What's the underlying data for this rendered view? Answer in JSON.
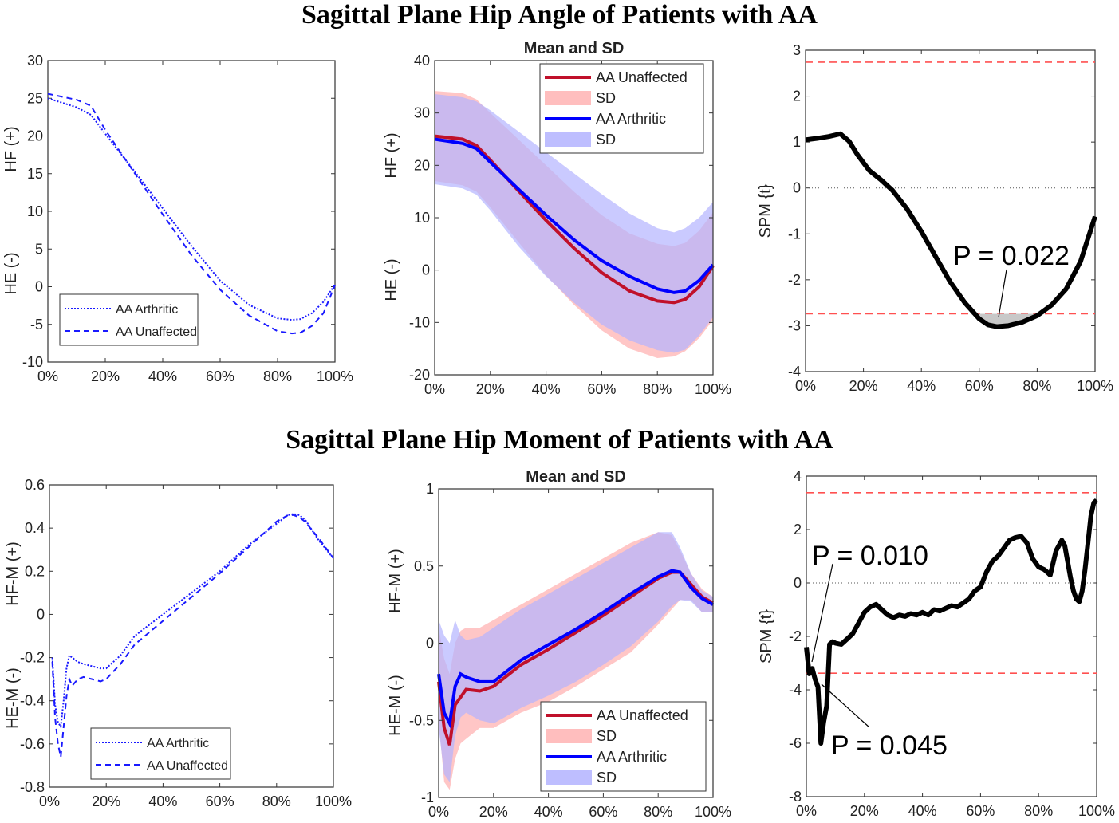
{
  "titles": {
    "top": "Sagittal Plane Hip Angle of Patients with AA",
    "bottom": "Sagittal Plane Hip Moment of Patients with AA"
  },
  "colors": {
    "arthritic": "#1a1aff",
    "unaffected_mean": "#c0102a",
    "arthritic_mean": "#0000ff",
    "unaffected_sd": "#ffb3b3",
    "arthritic_sd": "#b3b3ff",
    "overlap": "#b48ac9",
    "threshold": "#ff5050",
    "spm": "#000000"
  },
  "chart_data": [
    {
      "id": "angle_individual",
      "type": "line",
      "title": "",
      "ylabel_lines": [
        "HE (-)",
        "HF (+)"
      ],
      "xticks": [
        "0%",
        "20%",
        "40%",
        "60%",
        "80%",
        "100%"
      ],
      "yticks": [
        -10,
        -5,
        0,
        5,
        10,
        15,
        20,
        25,
        30
      ],
      "xlim": [
        0,
        100
      ],
      "ylim": [
        -10,
        30
      ],
      "legend": [
        "AA Arthritic",
        "AA Unaffected"
      ],
      "x": [
        0,
        5,
        10,
        15,
        20,
        30,
        40,
        50,
        60,
        70,
        80,
        85,
        88,
        92,
        96,
        100
      ],
      "series": [
        {
          "name": "AA Arthritic",
          "style": "dotted",
          "values": [
            25,
            24.4,
            23.8,
            22.8,
            20.3,
            15.4,
            10.4,
            5.4,
            0.8,
            -2.4,
            -4.2,
            -4.4,
            -4.3,
            -3.5,
            -2.0,
            0.3
          ]
        },
        {
          "name": "AA Unaffected",
          "style": "dashed",
          "values": [
            25.6,
            25.2,
            24.8,
            24.0,
            20.8,
            15.2,
            9.6,
            4.2,
            -0.4,
            -3.8,
            -5.9,
            -6.2,
            -6.1,
            -5.2,
            -3.5,
            0.2
          ]
        }
      ]
    },
    {
      "id": "angle_mean_sd",
      "type": "area",
      "title": "Mean and SD",
      "ylabel_lines": [
        "HE (-)",
        "HF (+)"
      ],
      "xticks": [
        "0%",
        "20%",
        "40%",
        "60%",
        "80%",
        "100%"
      ],
      "yticks": [
        -20,
        -10,
        0,
        10,
        20,
        30,
        40
      ],
      "xlim": [
        0,
        100
      ],
      "ylim": [
        -20,
        40
      ],
      "legend": [
        "AA Unaffected",
        "SD",
        "AA Arthritic",
        "SD"
      ],
      "x": [
        0,
        10,
        15,
        20,
        30,
        40,
        50,
        60,
        70,
        80,
        86,
        90,
        95,
        100
      ],
      "series": [
        {
          "name": "AA Unaffected",
          "values": [
            25.6,
            25.0,
            23.8,
            21.0,
            15.2,
            9.5,
            4.2,
            -0.5,
            -4.0,
            -5.9,
            -6.2,
            -5.6,
            -3.2,
            0.8
          ],
          "sd_upper": [
            34.2,
            33.8,
            32.6,
            30.0,
            25.0,
            20.0,
            15.0,
            10.5,
            7.0,
            5.0,
            4.6,
            5.2,
            7.5,
            11.0
          ],
          "sd_lower": [
            17.0,
            16.2,
            15.0,
            12.0,
            5.4,
            -1.0,
            -6.6,
            -11.5,
            -15.0,
            -16.8,
            -16.5,
            -15.5,
            -13.0,
            -9.5
          ]
        },
        {
          "name": "AA Arthritic",
          "values": [
            25.0,
            24.2,
            23.2,
            20.6,
            15.5,
            10.5,
            5.8,
            1.8,
            -1.2,
            -3.6,
            -4.3,
            -4.0,
            -2.0,
            1.0
          ],
          "sd_upper": [
            33.6,
            33.0,
            32.2,
            30.5,
            26.5,
            22.5,
            18.5,
            14.5,
            10.8,
            8.0,
            7.2,
            8.0,
            10.0,
            13.0
          ],
          "sd_lower": [
            16.4,
            15.6,
            14.4,
            11.4,
            4.6,
            -1.2,
            -6.2,
            -10.4,
            -13.4,
            -15.3,
            -15.8,
            -15.2,
            -12.5,
            -9.0
          ]
        }
      ]
    },
    {
      "id": "angle_spm",
      "type": "line",
      "title": "",
      "ylabel": "SPM {t}",
      "xticks": [
        "0%",
        "20%",
        "40%",
        "60%",
        "80%",
        "100%"
      ],
      "yticks": [
        -4,
        -3,
        -2,
        -1,
        0,
        1,
        2,
        3
      ],
      "xlim": [
        0,
        100
      ],
      "ylim": [
        -4,
        3
      ],
      "threshold": 2.74,
      "annotation": "P = 0.022",
      "x": [
        0,
        4,
        8,
        12,
        15,
        18,
        22,
        26,
        30,
        35,
        40,
        45,
        50,
        55,
        60,
        63,
        66,
        70,
        75,
        80,
        85,
        90,
        95,
        100
      ],
      "values": [
        1.05,
        1.08,
        1.12,
        1.18,
        1.02,
        0.72,
        0.38,
        0.18,
        -0.05,
        -0.45,
        -0.95,
        -1.5,
        -2.05,
        -2.5,
        -2.85,
        -2.98,
        -3.02,
        -3.0,
        -2.92,
        -2.78,
        -2.55,
        -2.2,
        -1.6,
        -0.62
      ]
    },
    {
      "id": "moment_individual",
      "type": "line",
      "title": "",
      "ylabel_lines": [
        "HE-M (-)",
        "HF-M (+)"
      ],
      "xticks": [
        "0%",
        "20%",
        "40%",
        "60%",
        "80%",
        "100%"
      ],
      "yticks": [
        -0.8,
        -0.6,
        -0.4,
        -0.2,
        0,
        0.2,
        0.4,
        0.6
      ],
      "xlim": [
        0,
        100
      ],
      "ylim": [
        -0.8,
        0.6
      ],
      "legend": [
        "AA Arthritic",
        "AA Unaffected"
      ],
      "x": [
        1,
        2,
        3,
        4,
        5,
        6,
        7,
        8,
        10,
        12,
        15,
        18,
        20,
        25,
        30,
        40,
        50,
        60,
        70,
        80,
        84,
        86,
        88,
        90,
        95,
        100
      ],
      "series": [
        {
          "name": "AA Arthritic",
          "style": "dotted",
          "values": [
            -0.2,
            -0.42,
            -0.5,
            -0.52,
            -0.4,
            -0.25,
            -0.19,
            -0.2,
            -0.22,
            -0.23,
            -0.24,
            -0.25,
            -0.25,
            -0.19,
            -0.1,
            0.0,
            0.1,
            0.2,
            0.32,
            0.42,
            0.46,
            0.465,
            0.46,
            0.44,
            0.34,
            0.26
          ]
        },
        {
          "name": "AA Unaffected",
          "style": "dashed",
          "values": [
            -0.22,
            -0.48,
            -0.6,
            -0.66,
            -0.52,
            -0.38,
            -0.3,
            -0.33,
            -0.3,
            -0.29,
            -0.3,
            -0.31,
            -0.3,
            -0.23,
            -0.14,
            -0.03,
            0.08,
            0.19,
            0.31,
            0.43,
            0.46,
            0.46,
            0.45,
            0.43,
            0.35,
            0.26
          ]
        }
      ]
    },
    {
      "id": "moment_mean_sd",
      "type": "area",
      "title": "Mean and SD",
      "ylabel_lines": [
        "HE-M (-)",
        "HF-M (+)"
      ],
      "xticks": [
        "0%",
        "20%",
        "40%",
        "60%",
        "80%",
        "100%"
      ],
      "yticks": [
        -1,
        -0.5,
        0,
        0.5,
        1
      ],
      "xlim": [
        0,
        100
      ],
      "ylim": [
        -1,
        1
      ],
      "legend": [
        "AA Unaffected",
        "SD",
        "AA Arthritic",
        "SD"
      ],
      "x": [
        0,
        2,
        4,
        6,
        8,
        10,
        15,
        20,
        30,
        40,
        50,
        60,
        70,
        80,
        85,
        88,
        92,
        96,
        100
      ],
      "series": [
        {
          "name": "AA Unaffected",
          "values": [
            -0.25,
            -0.55,
            -0.66,
            -0.4,
            -0.35,
            -0.3,
            -0.31,
            -0.28,
            -0.14,
            -0.04,
            0.07,
            0.18,
            0.3,
            0.42,
            0.46,
            0.46,
            0.38,
            0.3,
            0.26
          ],
          "sd_upper": [
            0.1,
            -0.1,
            -0.2,
            0.0,
            0.08,
            0.1,
            0.1,
            0.15,
            0.25,
            0.35,
            0.45,
            0.55,
            0.65,
            0.72,
            0.7,
            0.6,
            0.45,
            0.35,
            0.3
          ],
          "sd_lower": [
            -0.5,
            -0.9,
            -0.95,
            -0.75,
            -0.65,
            -0.62,
            -0.55,
            -0.55,
            -0.45,
            -0.38,
            -0.28,
            -0.17,
            -0.06,
            0.12,
            0.22,
            0.28,
            0.28,
            0.2,
            0.2
          ]
        },
        {
          "name": "AA Arthritic",
          "values": [
            -0.2,
            -0.45,
            -0.52,
            -0.28,
            -0.2,
            -0.22,
            -0.25,
            -0.25,
            -0.11,
            -0.01,
            0.09,
            0.2,
            0.32,
            0.43,
            0.47,
            0.46,
            0.36,
            0.29,
            0.25
          ],
          "sd_upper": [
            0.15,
            0.05,
            0.0,
            0.15,
            0.05,
            0.02,
            0.04,
            0.1,
            0.22,
            0.32,
            0.42,
            0.52,
            0.62,
            0.72,
            0.72,
            0.62,
            0.45,
            0.34,
            0.3
          ],
          "sd_lower": [
            -0.55,
            -0.85,
            -0.9,
            -0.6,
            -0.48,
            -0.45,
            -0.5,
            -0.52,
            -0.42,
            -0.34,
            -0.25,
            -0.14,
            -0.02,
            0.14,
            0.24,
            0.28,
            0.27,
            0.2,
            0.2
          ]
        }
      ]
    },
    {
      "id": "moment_spm",
      "type": "line",
      "title": "",
      "ylabel": "SPM {t}",
      "xticks": [
        "0%",
        "20%",
        "40%",
        "60%",
        "80%",
        "100%"
      ],
      "yticks": [
        -8,
        -6,
        -4,
        -2,
        0,
        2,
        4
      ],
      "xlim": [
        0,
        100
      ],
      "ylim": [
        -8,
        4
      ],
      "threshold": 3.38,
      "annotations": [
        "P = 0.010",
        "P = 0.045"
      ],
      "x": [
        0,
        1,
        2,
        3,
        4,
        5,
        6,
        7,
        8,
        9,
        10,
        12,
        14,
        16,
        18,
        20,
        22,
        24,
        26,
        28,
        30,
        32,
        34,
        36,
        38,
        40,
        42,
        44,
        46,
        48,
        50,
        52,
        54,
        56,
        58,
        60,
        62,
        64,
        66,
        68,
        70,
        72,
        74,
        76,
        78,
        80,
        82,
        84,
        86,
        88,
        89,
        90,
        91,
        92,
        93,
        94,
        95,
        96,
        97,
        98,
        99,
        100
      ],
      "values": [
        -2.4,
        -3.4,
        -3.2,
        -3.6,
        -3.9,
        -6.0,
        -5.2,
        -4.6,
        -2.3,
        -2.2,
        -2.25,
        -2.3,
        -2.1,
        -1.9,
        -1.5,
        -1.1,
        -0.9,
        -0.8,
        -1.0,
        -1.2,
        -1.3,
        -1.2,
        -1.25,
        -1.15,
        -1.2,
        -1.1,
        -1.2,
        -1.0,
        -1.05,
        -0.95,
        -0.85,
        -0.9,
        -0.75,
        -0.6,
        -0.3,
        -0.15,
        0.4,
        0.8,
        1.0,
        1.3,
        1.6,
        1.7,
        1.75,
        1.5,
        0.9,
        0.6,
        0.5,
        0.3,
        1.2,
        1.6,
        1.4,
        0.8,
        0.2,
        -0.3,
        -0.6,
        -0.7,
        -0.3,
        0.5,
        1.5,
        2.5,
        3.0,
        3.1
      ]
    }
  ]
}
